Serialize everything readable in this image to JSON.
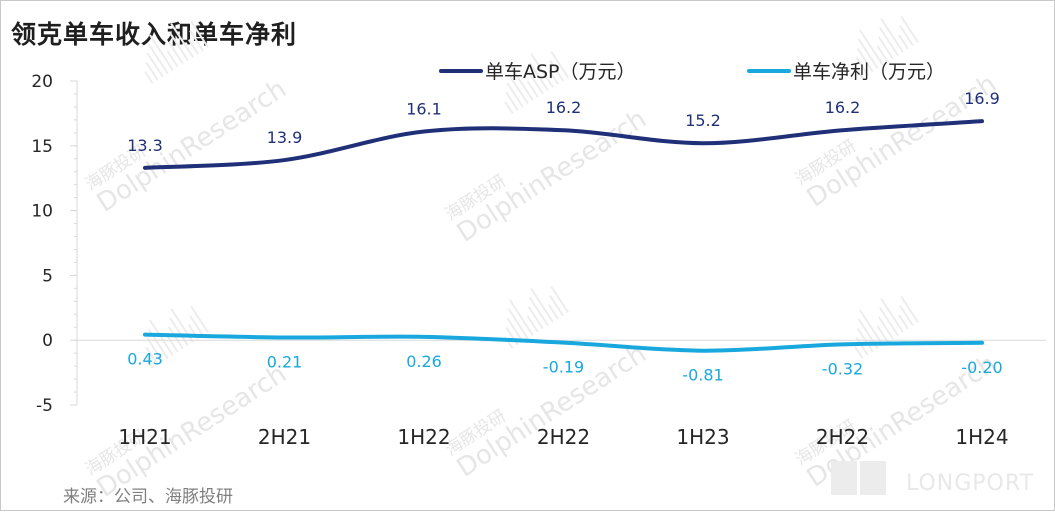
{
  "title": "领克单车收入和单车净利",
  "source": "来源：公司、海豚投研",
  "watermark": {
    "cn": "海豚投研",
    "en": "DolphinResearch",
    "brand": "LONGPORT"
  },
  "colors": {
    "asp": "#203078",
    "profit": "#18a8de",
    "axis": "#d9d9d9",
    "text": "#262626"
  },
  "chart_data": {
    "type": "line",
    "categories": [
      "1H21",
      "2H21",
      "1H22",
      "2H22",
      "1H23",
      "2H22",
      "1H24"
    ],
    "series": [
      {
        "name": "单车ASP（万元）",
        "values": [
          13.3,
          13.9,
          16.1,
          16.2,
          15.2,
          16.2,
          16.9
        ],
        "labels": [
          "13.3",
          "13.9",
          "16.1",
          "16.2",
          "15.2",
          "16.2",
          "16.9"
        ]
      },
      {
        "name": "单车净利（万元）",
        "values": [
          0.43,
          0.21,
          0.26,
          -0.19,
          -0.81,
          -0.32,
          -0.2
        ],
        "labels": [
          "0.43",
          "0.21",
          "0.26",
          "-0.19",
          "-0.81",
          "-0.32",
          "-0.20"
        ]
      }
    ],
    "ylim": [
      -5,
      20
    ],
    "yticks": [
      "-5",
      "0",
      "5",
      "10",
      "15",
      "20"
    ],
    "legend": "top",
    "grid": false,
    "smooth": true
  }
}
